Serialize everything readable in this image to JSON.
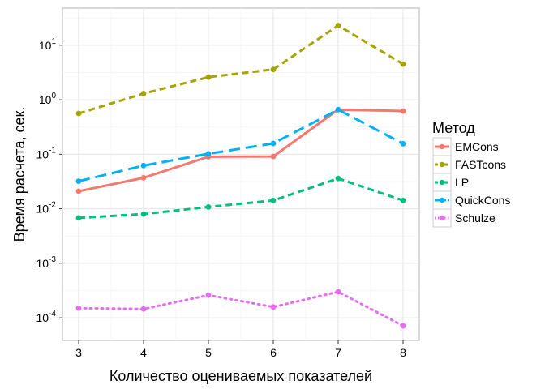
{
  "chart_data": {
    "type": "line",
    "xlabel": "Количество оцениваемых показателей",
    "ylabel": "Время расчета, сек.",
    "y_scale": "log10",
    "x": [
      3,
      4,
      5,
      6,
      7,
      8
    ],
    "xlim": [
      2.75,
      8.25
    ],
    "ylim": [
      3.85e-05,
      48
    ],
    "x_ticks": [
      "3",
      "4",
      "5",
      "6",
      "7",
      "8"
    ],
    "y_ticks": [
      {
        "value": 0.0001,
        "base": "10",
        "exp": "-4"
      },
      {
        "value": 0.001,
        "base": "10",
        "exp": "-3"
      },
      {
        "value": 0.01,
        "base": "10",
        "exp": "-2"
      },
      {
        "value": 0.1,
        "base": "10",
        "exp": "-1"
      },
      {
        "value": 1,
        "base": "10",
        "exp": "0"
      },
      {
        "value": 10,
        "base": "10",
        "exp": "1"
      }
    ],
    "grid": true,
    "legend": {
      "title": "Метод",
      "position": "right"
    },
    "series": [
      {
        "name": "EMCons",
        "color": "#F8766D",
        "dash": "solid",
        "values": [
          0.021,
          0.037,
          0.09,
          0.091,
          0.66,
          0.62
        ]
      },
      {
        "name": "FASTcons",
        "color": "#A3A500",
        "dash": "dashed",
        "values": [
          0.56,
          1.3,
          2.6,
          3.6,
          23,
          4.5
        ]
      },
      {
        "name": "LP",
        "color": "#00BF7D",
        "dash": "dashed",
        "values": [
          0.0068,
          0.008,
          0.0108,
          0.0142,
          0.036,
          0.0142
        ]
      },
      {
        "name": "QuickCons",
        "color": "#00B0F6",
        "dash": "longdash",
        "values": [
          0.032,
          0.062,
          0.102,
          0.158,
          0.66,
          0.156
        ]
      },
      {
        "name": "Schulze",
        "color": "#E76BF3",
        "dash": "dotted",
        "values": [
          0.00015,
          0.000145,
          0.00026,
          0.000158,
          0.0003,
          7.1e-05
        ]
      }
    ]
  }
}
